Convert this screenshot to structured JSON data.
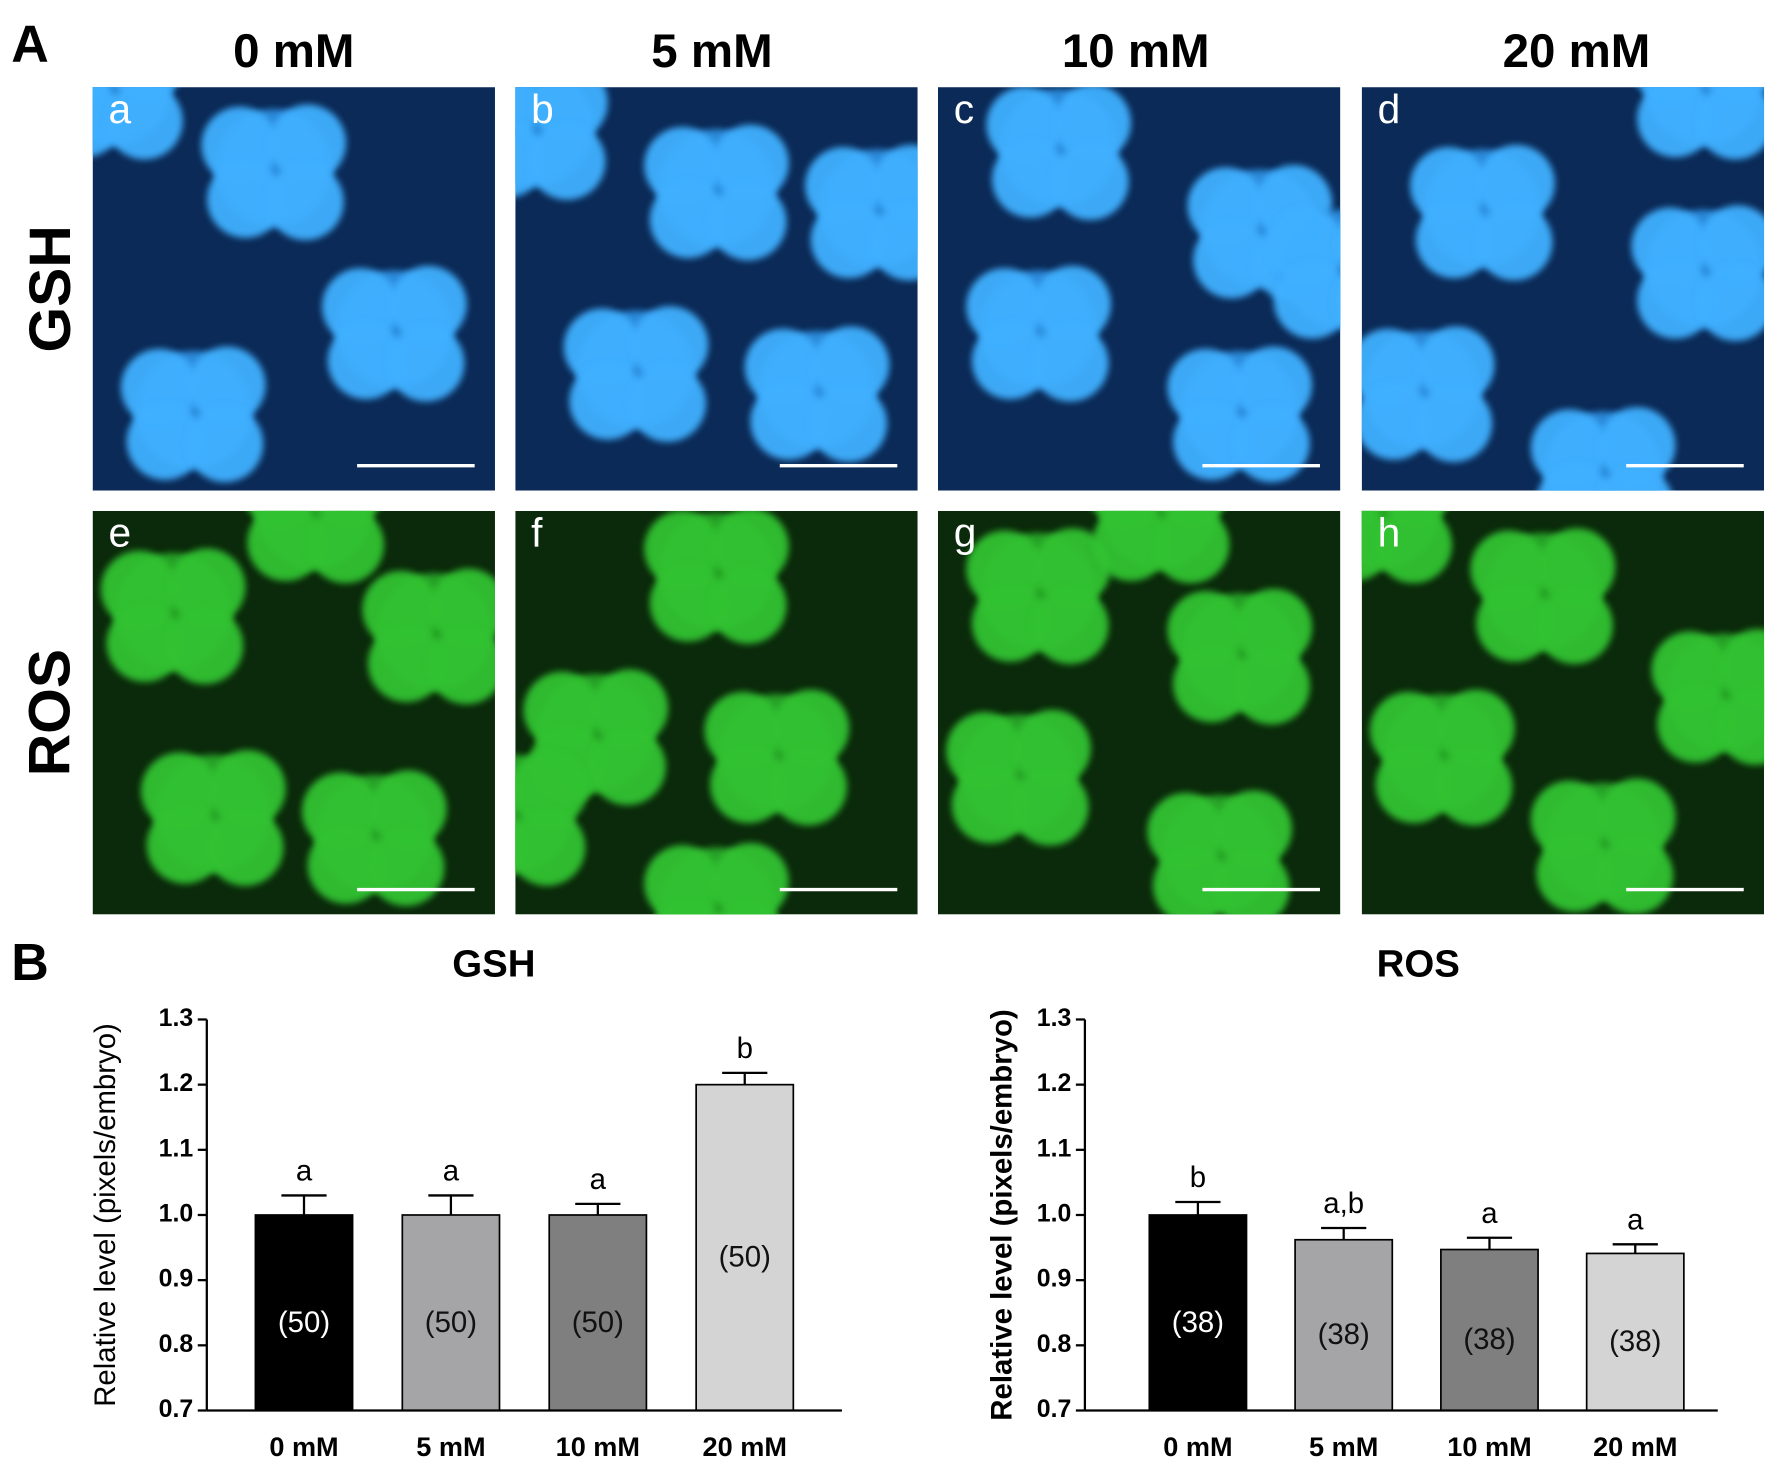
{
  "panels": {
    "A": "A",
    "B": "B"
  },
  "columns": [
    "0 mM",
    "5 mM",
    "10 mM",
    "20 mM"
  ],
  "rows": [
    "GSH",
    "ROS"
  ],
  "image_labels": [
    "a",
    "b",
    "c",
    "d",
    "e",
    "f",
    "g",
    "h"
  ],
  "chart_data": [
    {
      "type": "bar",
      "title": "GSH",
      "y_label": "Relative level (pixels/embryo)",
      "categories": [
        "0 mM",
        "5 mM",
        "10 mM",
        "20 mM"
      ],
      "values": [
        1.0,
        1.0,
        1.0,
        1.2
      ],
      "errors": [
        0.03,
        0.03,
        0.017,
        0.018
      ],
      "annotations": [
        "a",
        "a",
        "a",
        "b"
      ],
      "n_labels": [
        "(50)",
        "(50)",
        "(50)",
        "(50)"
      ],
      "colors": [
        "#000000",
        "#a5a5a8",
        "#7f7f7f",
        "#d4d4d4"
      ],
      "ylim": [
        0.7,
        1.3
      ],
      "yticks": [
        0.7,
        0.8,
        0.9,
        {
          "value": 1,
          "label": "1.0"
        },
        1.1,
        1.2,
        1.3
      ]
    },
    {
      "type": "bar",
      "title": "ROS",
      "y_label": "Relative level (pixels/embryo)",
      "categories": [
        "0 mM",
        "5 mM",
        "10 mM",
        "20 mM"
      ],
      "values": [
        1.0,
        0.962,
        0.947,
        0.941
      ],
      "errors": [
        0.02,
        0.018,
        0.018,
        0.014
      ],
      "annotations": [
        "b",
        "a,b",
        "a",
        "a"
      ],
      "n_labels": [
        "(38)",
        "(38)",
        "(38)",
        "(38)"
      ],
      "colors": [
        "#000000",
        "#a5a5a8",
        "#7f7f7f",
        "#d4d4d4"
      ],
      "ylim": [
        0.7,
        1.3
      ],
      "yticks": [
        0.7,
        0.8,
        0.9,
        {
          "value": 1,
          "label": "1.0"
        },
        1.1,
        1.2,
        1.3
      ]
    }
  ]
}
